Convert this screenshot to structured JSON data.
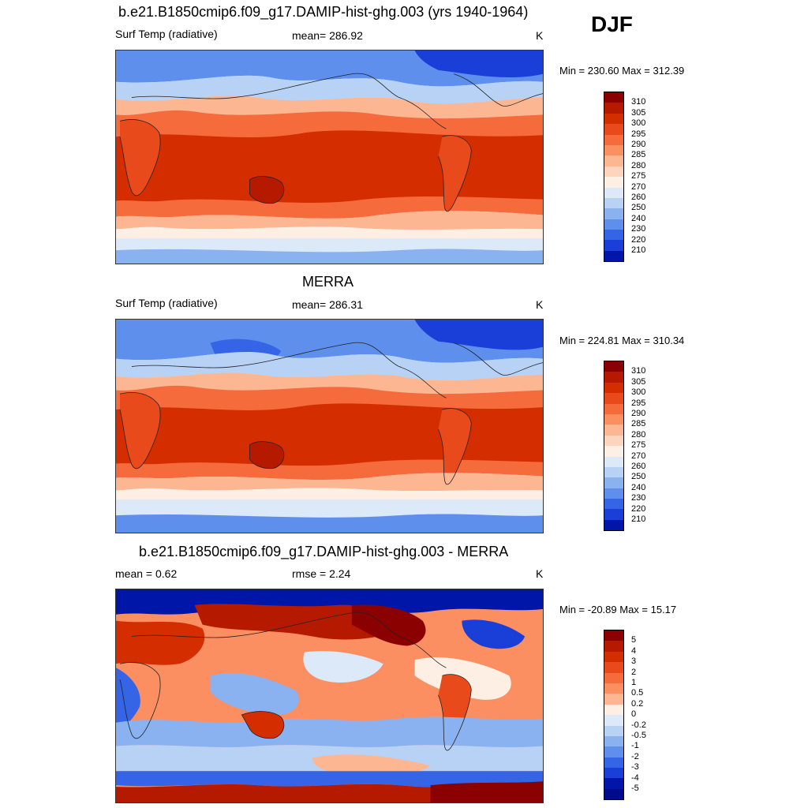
{
  "season": "DJF",
  "panels": [
    {
      "title": "b.e21.B1850cmip6.f09_g17.DAMIP-hist-ghg.003 (yrs 1940-1964)",
      "left_label": "Surf Temp (radiative)",
      "center_label": "mean= 286.92",
      "units": "K",
      "minmax": "Min = 230.60 Max = 312.39"
    },
    {
      "title": "MERRA",
      "left_label": "Surf Temp (radiative)",
      "center_label": "mean= 286.31",
      "units": "K",
      "minmax": "Min = 224.81 Max = 310.34"
    },
    {
      "title": "b.e21.B1850cmip6.f09_g17.DAMIP-hist-ghg.003 - MERRA",
      "left_label": "mean =   0.62",
      "center_label": "rmse =   2.24",
      "units": "K",
      "minmax": "Min = -20.89 Max =  15.17"
    }
  ],
  "colorbars": {
    "absolute": {
      "labels": [
        "310",
        "305",
        "300",
        "295",
        "290",
        "285",
        "280",
        "275",
        "270",
        "260",
        "250",
        "240",
        "230",
        "220",
        "210"
      ],
      "colors": [
        "#8b0000",
        "#b51a00",
        "#d42e00",
        "#e84a1c",
        "#f56b3c",
        "#fb8f62",
        "#fdb692",
        "#fdd4bd",
        "#fdefe3",
        "#dbe9f8",
        "#b7d2f4",
        "#8ab2f0",
        "#5e8fec",
        "#3565e6",
        "#1a3fd8",
        "#0016a8"
      ]
    },
    "difference": {
      "labels": [
        "5",
        "4",
        "3",
        "2",
        "1",
        "0.5",
        "0.2",
        "0",
        "-0.2",
        "-0.5",
        "-1",
        "-2",
        "-3",
        "-4",
        "-5"
      ],
      "colors": [
        "#8b0000",
        "#b51a00",
        "#d42e00",
        "#e84a1c",
        "#f56b3c",
        "#fb8f62",
        "#fdb692",
        "#fdefe3",
        "#dbe9f8",
        "#b7d2f4",
        "#8ab2f0",
        "#5e8fec",
        "#3565e6",
        "#1a3fd8",
        "#0016a8",
        "#000a8c"
      ]
    }
  }
}
